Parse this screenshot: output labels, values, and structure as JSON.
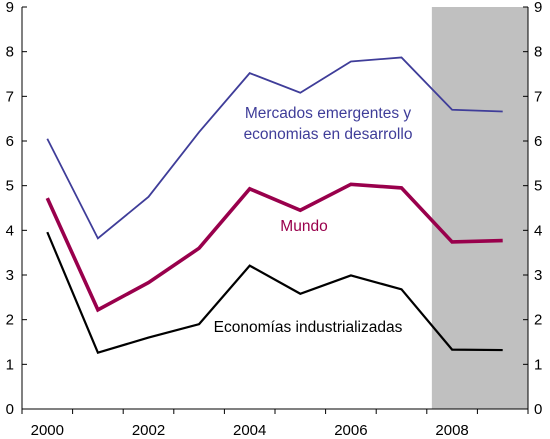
{
  "chart_data": {
    "type": "line",
    "x": [
      2000,
      2001,
      2002,
      2003,
      2004,
      2005,
      2006,
      2007,
      2008,
      2009
    ],
    "x_ticks": [
      "2000",
      "2002",
      "2004",
      "2006",
      "2008"
    ],
    "y_ticks": [
      "0",
      "1",
      "2",
      "3",
      "4",
      "5",
      "6",
      "7",
      "8",
      "9"
    ],
    "ylim": [
      0,
      9
    ],
    "xlim": [
      1999.5,
      2009.5
    ],
    "shaded_region": {
      "from": 2007.6,
      "to": 2009.5,
      "color": "#c0c0c0"
    },
    "grid": false,
    "series": [
      {
        "key": "emergentes",
        "name_lines": [
          "Mercados emergentes y",
          "economias en desarrollo"
        ],
        "color": "#3f3d99",
        "values": [
          6.05,
          3.82,
          4.75,
          6.2,
          7.52,
          7.08,
          7.78,
          7.87,
          6.7,
          6.66
        ]
      },
      {
        "key": "mundo",
        "name_lines": [
          "Mundo"
        ],
        "color": "#99004c",
        "values": [
          4.72,
          2.22,
          2.83,
          3.6,
          4.93,
          4.45,
          5.03,
          4.95,
          3.74,
          3.77
        ]
      },
      {
        "key": "industrializadas",
        "name_lines": [
          "Economías industrializadas"
        ],
        "color": "#000000",
        "values": [
          3.96,
          1.26,
          1.6,
          1.9,
          3.21,
          2.58,
          2.99,
          2.68,
          1.33,
          1.32
        ]
      }
    ]
  }
}
